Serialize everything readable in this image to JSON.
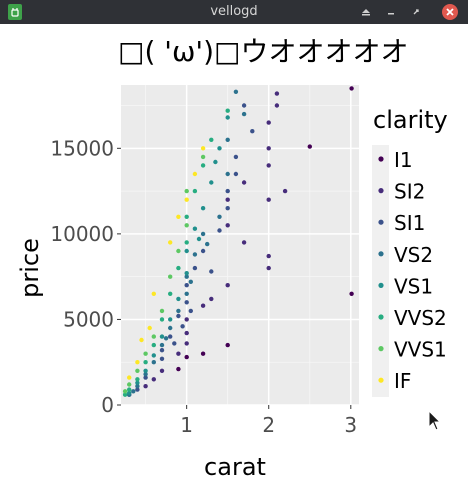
{
  "window": {
    "title": "vellogd",
    "icons": [
      "app-icon",
      "minimize-icon",
      "restore-icon",
      "maximize-icon",
      "close-icon"
    ]
  },
  "chart_data": {
    "type": "scatter",
    "title": "□( 'ω')□ウオオオオオ",
    "xlabel": "carat",
    "ylabel": "price",
    "xlim": [
      0.2,
      3.1
    ],
    "ylim": [
      0,
      18700
    ],
    "x_ticks": [
      1,
      2,
      3
    ],
    "y_ticks": [
      0,
      5000,
      10000,
      15000
    ],
    "x_tick_labels": [
      "1",
      "2",
      "3"
    ],
    "y_tick_labels": [
      "0",
      "5000",
      "10000",
      "15000"
    ],
    "grid": true,
    "panel_background": "#ebebeb",
    "legend_title": "clarity",
    "legend_placement": "right",
    "series": [
      {
        "name": "I1",
        "color": "#440154",
        "points": [
          [
            3.01,
            18500
          ],
          [
            3.01,
            6500
          ],
          [
            2.5,
            15100
          ],
          [
            1.5,
            3500
          ],
          [
            1.0,
            2800
          ],
          [
            1.2,
            3000
          ],
          [
            0.9,
            2100
          ]
        ]
      },
      {
        "name": "SI2",
        "color": "#472d7b",
        "points": [
          [
            2.0,
            16500
          ],
          [
            2.1,
            18200
          ],
          [
            2.0,
            14000
          ],
          [
            2.2,
            12500
          ],
          [
            2.0,
            8700
          ],
          [
            2.0,
            8000
          ],
          [
            1.7,
            13000
          ],
          [
            1.5,
            7000
          ],
          [
            1.5,
            10500
          ],
          [
            1.2,
            5800
          ],
          [
            1.0,
            4200
          ],
          [
            1.0,
            3600
          ],
          [
            0.9,
            3000
          ],
          [
            0.7,
            2000
          ],
          [
            0.6,
            1500
          ],
          [
            0.5,
            1100
          ],
          [
            1.3,
            6200
          ],
          [
            1.7,
            9500
          ],
          [
            2.0,
            12000
          ],
          [
            2.0,
            15000
          ],
          [
            2.1,
            17500
          ],
          [
            1.5,
            12000
          ],
          [
            1.0,
            5000
          ]
        ]
      },
      {
        "name": "SI1",
        "color": "#3b528b",
        "points": [
          [
            1.7,
            17500
          ],
          [
            1.8,
            16000
          ],
          [
            1.6,
            14500
          ],
          [
            1.5,
            12500
          ],
          [
            1.5,
            11500
          ],
          [
            1.4,
            10200
          ],
          [
            1.2,
            9000
          ],
          [
            1.1,
            8000
          ],
          [
            1.0,
            7000
          ],
          [
            1.0,
            6000
          ],
          [
            0.9,
            5200
          ],
          [
            0.8,
            4000
          ],
          [
            0.7,
            3200
          ],
          [
            0.7,
            2700
          ],
          [
            0.5,
            1600
          ],
          [
            0.4,
            900
          ],
          [
            0.3,
            600
          ],
          [
            1.6,
            13500
          ],
          [
            1.3,
            7800
          ],
          [
            1.05,
            5500
          ],
          [
            0.95,
            4600
          ],
          [
            0.85,
            3600
          ]
        ]
      },
      {
        "name": "VS2",
        "color": "#2c728e",
        "points": [
          [
            1.6,
            18300
          ],
          [
            1.7,
            17000
          ],
          [
            1.5,
            15500
          ],
          [
            1.5,
            13500
          ],
          [
            1.4,
            11000
          ],
          [
            1.2,
            10000
          ],
          [
            1.1,
            8800
          ],
          [
            1.0,
            7500
          ],
          [
            1.0,
            6500
          ],
          [
            0.9,
            5500
          ],
          [
            0.8,
            4500
          ],
          [
            0.7,
            3500
          ],
          [
            0.6,
            2500
          ],
          [
            0.5,
            1800
          ],
          [
            0.4,
            1100
          ],
          [
            0.35,
            800
          ],
          [
            0.3,
            600
          ],
          [
            1.25,
            9400
          ],
          [
            1.05,
            7200
          ],
          [
            0.75,
            3900
          ]
        ]
      },
      {
        "name": "VS1",
        "color": "#21908d",
        "points": [
          [
            1.5,
            16800
          ],
          [
            1.4,
            15000
          ],
          [
            1.3,
            13000
          ],
          [
            1.2,
            11500
          ],
          [
            1.1,
            10300
          ],
          [
            1.0,
            9000
          ],
          [
            1.0,
            7700
          ],
          [
            0.9,
            6200
          ],
          [
            0.8,
            5000
          ],
          [
            0.7,
            4000
          ],
          [
            0.6,
            2900
          ],
          [
            0.5,
            2000
          ],
          [
            0.4,
            1300
          ],
          [
            0.3,
            700
          ],
          [
            1.35,
            14200
          ],
          [
            1.15,
            9700
          ]
        ]
      },
      {
        "name": "VVS2",
        "color": "#27ad81",
        "points": [
          [
            1.5,
            17200
          ],
          [
            1.3,
            15500
          ],
          [
            1.2,
            14000
          ],
          [
            1.1,
            12500
          ],
          [
            1.0,
            11000
          ],
          [
            1.0,
            9500
          ],
          [
            0.9,
            8000
          ],
          [
            0.8,
            6500
          ],
          [
            0.7,
            5000
          ],
          [
            0.6,
            3500
          ],
          [
            0.5,
            2500
          ],
          [
            0.4,
            1500
          ],
          [
            0.3,
            900
          ],
          [
            0.25,
            600
          ]
        ]
      },
      {
        "name": "VVS1",
        "color": "#5dc863",
        "points": [
          [
            1.2,
            14500
          ],
          [
            1.0,
            12500
          ],
          [
            1.0,
            10500
          ],
          [
            0.9,
            9000
          ],
          [
            0.8,
            7500
          ],
          [
            0.7,
            5500
          ],
          [
            0.6,
            4000
          ],
          [
            0.5,
            3000
          ],
          [
            0.4,
            2000
          ],
          [
            0.3,
            1200
          ],
          [
            0.25,
            800
          ]
        ]
      },
      {
        "name": "IF",
        "color": "#fde725",
        "points": [
          [
            1.2,
            15000
          ],
          [
            1.1,
            13500
          ],
          [
            1.0,
            12000
          ],
          [
            0.9,
            11000
          ],
          [
            0.8,
            9500
          ],
          [
            0.6,
            6500
          ],
          [
            0.55,
            4500
          ],
          [
            0.45,
            3800
          ],
          [
            0.4,
            2500
          ],
          [
            0.3,
            1600
          ]
        ]
      }
    ]
  }
}
